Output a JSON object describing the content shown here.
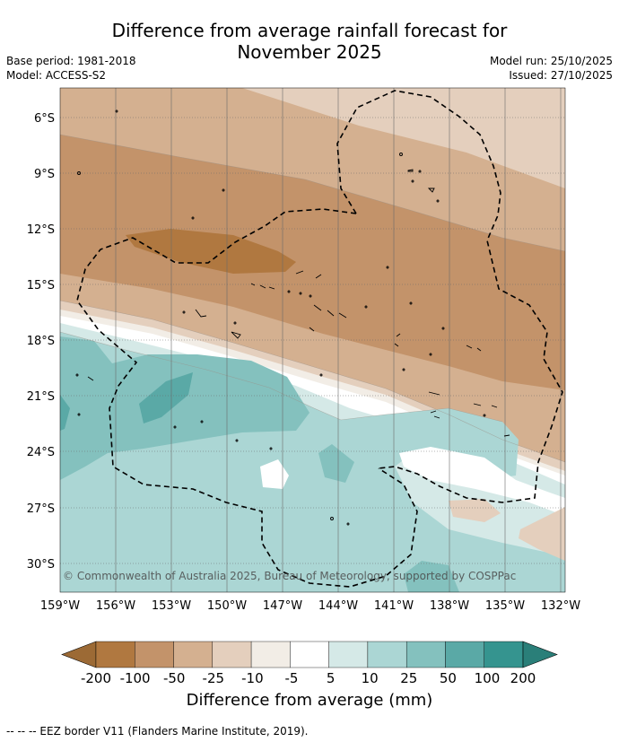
{
  "title": {
    "line1": "Difference from average rainfall forecast for",
    "line2": "November 2025"
  },
  "meta": {
    "base_period": "Base period: 1981-2018",
    "model": "Model: ACCESS-S2",
    "model_run": "Model run: 25/10/2025",
    "issued": "Issued: 27/10/2025"
  },
  "map": {
    "lat_labels": [
      "6°S",
      "9°S",
      "12°S",
      "15°S",
      "18°S",
      "21°S",
      "24°S",
      "27°S",
      "30°S"
    ],
    "lon_labels": [
      "159°W",
      "156°W",
      "153°W",
      "150°W",
      "147°W",
      "144°W",
      "141°W",
      "138°W",
      "135°W",
      "132°W"
    ],
    "copyright": "© Commonwealth of Australia 2025, Bureau of Meteorology, supported by COSPPac"
  },
  "colorbar": {
    "title": "Difference from average (mm)",
    "tick_labels": [
      "-200",
      "-100",
      "-50",
      "-25",
      "-10",
      "-5",
      "5",
      "10",
      "25",
      "50",
      "100",
      "200"
    ],
    "colors": [
      "#9c6a35",
      "#b07840",
      "#c3936a",
      "#d4b090",
      "#e4cfbd",
      "#f2ede6",
      "#ffffff",
      "#d5e9e7",
      "#abd6d4",
      "#84c1be",
      "#5aa9a6",
      "#35948f",
      "#2a7f79"
    ]
  },
  "legend_footnote": "-- -- -- EEZ border V11 (Flanders Marine Institute, 2019)."
}
